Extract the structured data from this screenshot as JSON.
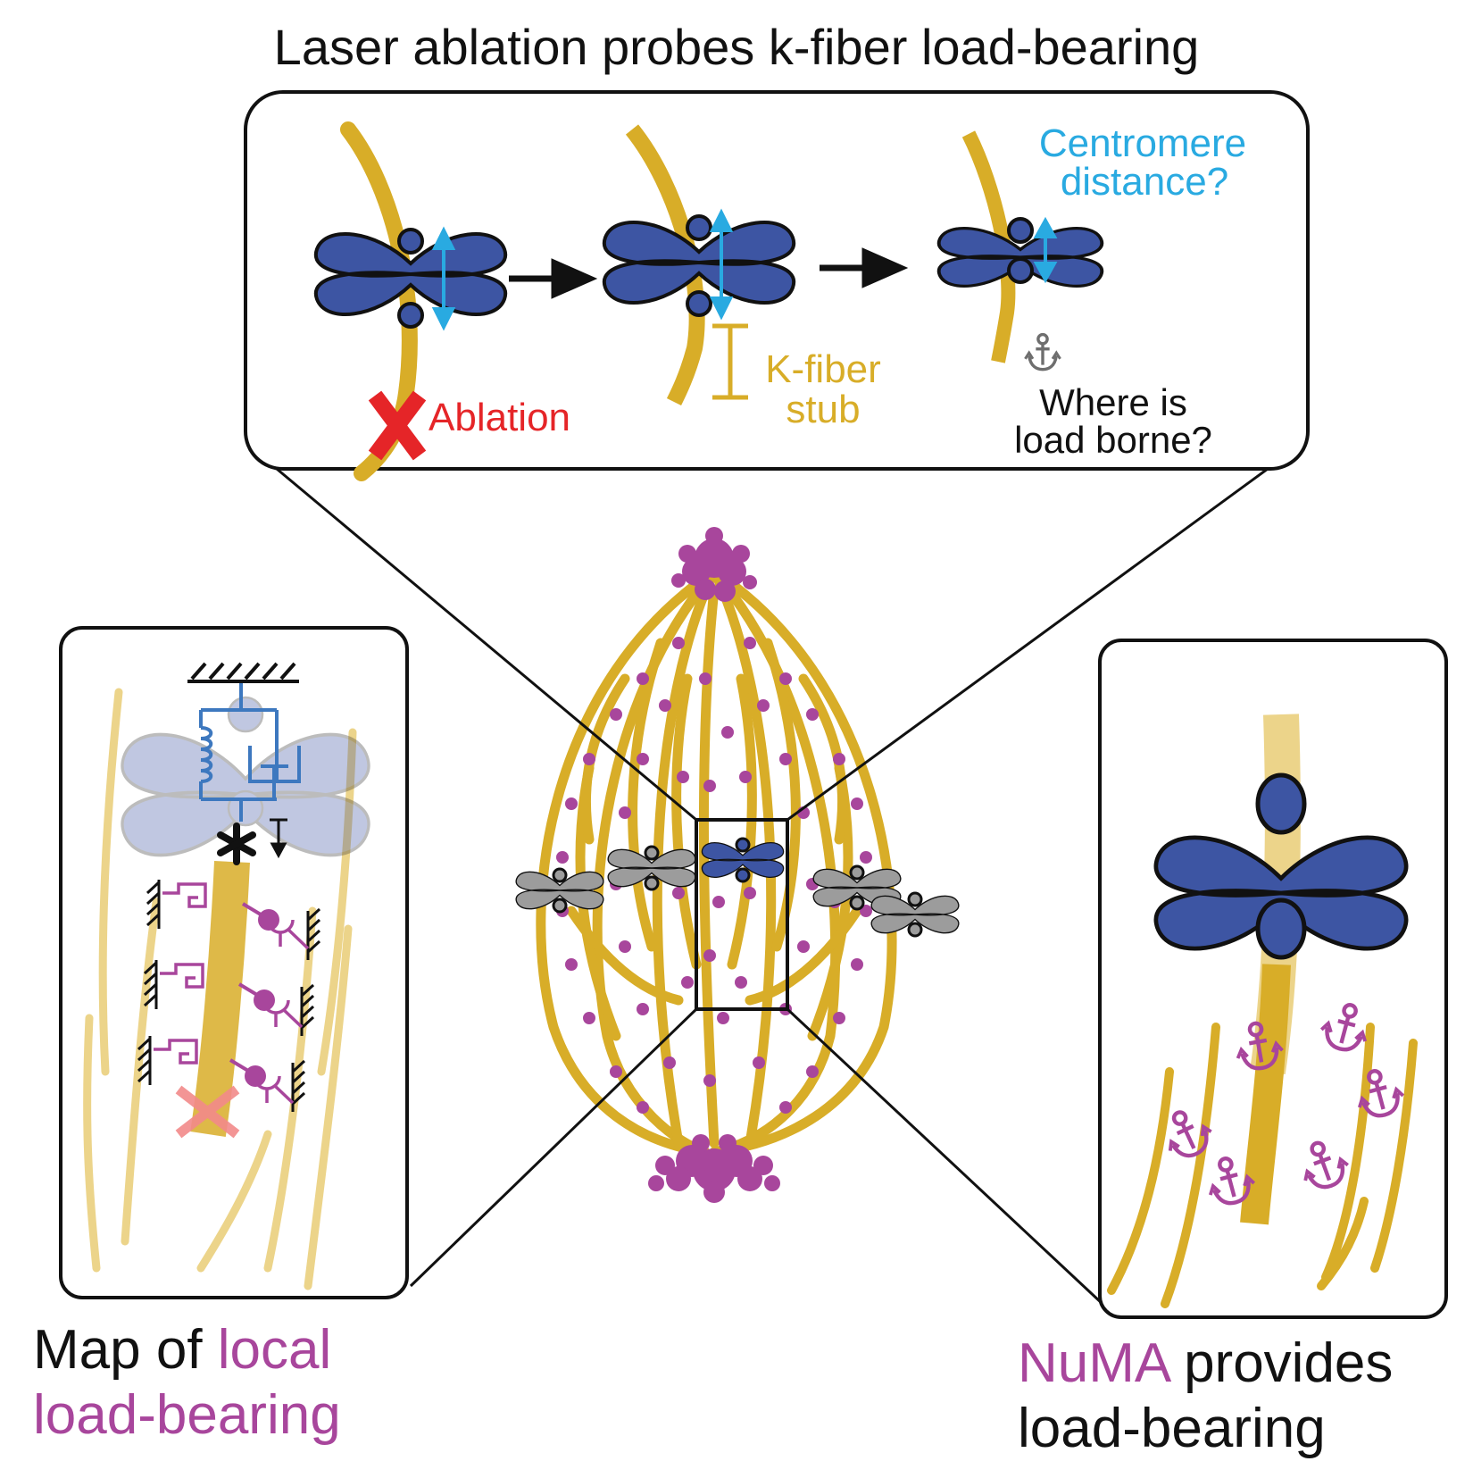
{
  "title": "Laser ablation probes k-fiber load-bearing",
  "top_panel": {
    "centromere_label_line1": "Centromere",
    "centromere_label_line2": "distance?",
    "ablation_label": "Ablation",
    "stub_label_line1": "K-fiber",
    "stub_label_line2": "stub",
    "load_label_line1": "Where is",
    "load_label_line2": "load borne?"
  },
  "left_caption": {
    "line1_plain": "Map of ",
    "line1_highlight": "local",
    "line2_highlight": "load-bearing"
  },
  "right_caption": {
    "line1_highlight": "NuMA",
    "line1_plain": " provides",
    "line2_plain": "load-bearing"
  },
  "colors": {
    "kfiber": "#d8ad28",
    "chromosome": "#3d55a3",
    "numa": "#a8469c",
    "distance": "#29aae1",
    "ablation": "#e52528",
    "spring": "#3d78bf",
    "gray_chromosome": "#9c9c9c",
    "anchor_gray": "#6e6e6e"
  },
  "icons": [
    "ablation-x-icon",
    "arrow-right-icon",
    "double-arrow-icon",
    "anchor-icon",
    "spring-icon",
    "dashpot-icon",
    "asterisk-icon"
  ]
}
